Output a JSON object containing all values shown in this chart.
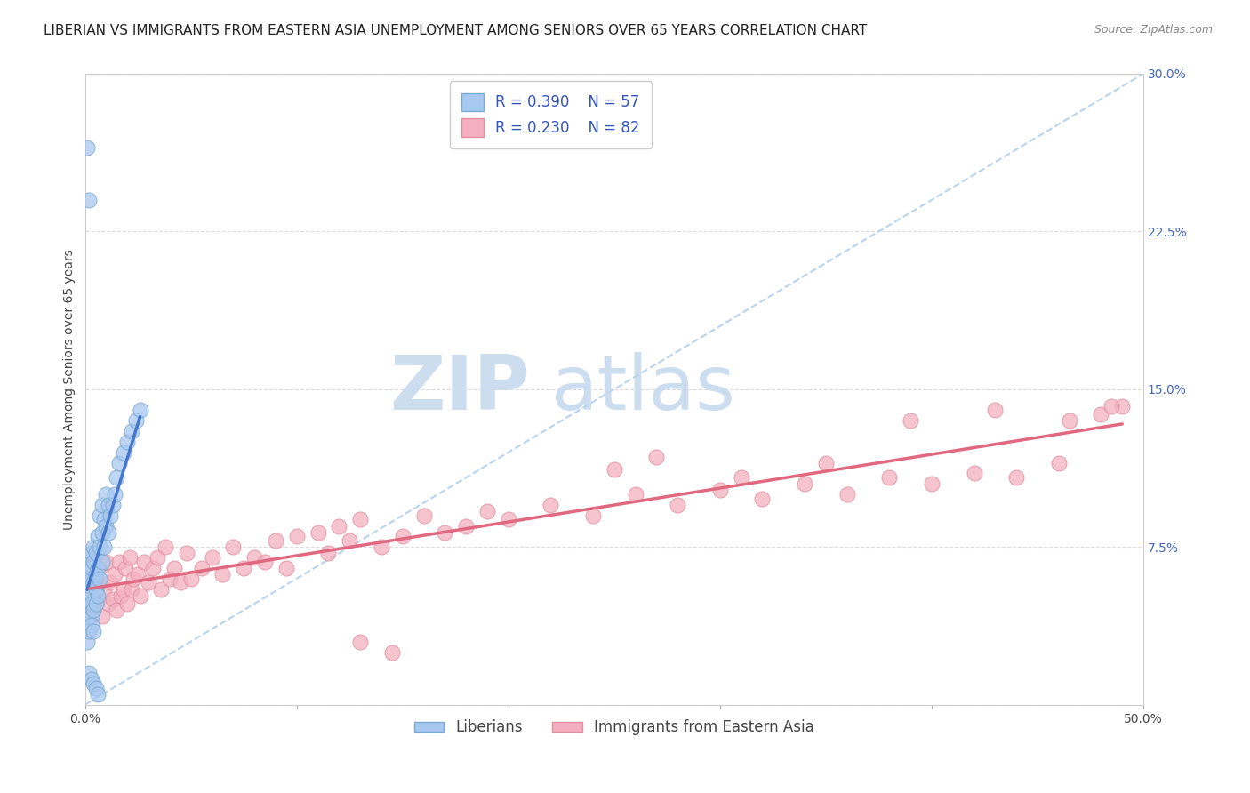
{
  "title": "LIBERIAN VS IMMIGRANTS FROM EASTERN ASIA UNEMPLOYMENT AMONG SENIORS OVER 65 YEARS CORRELATION CHART",
  "source": "Source: ZipAtlas.com",
  "ylabel": "Unemployment Among Seniors over 65 years",
  "xlim": [
    0.0,
    0.5
  ],
  "ylim": [
    0.0,
    0.3
  ],
  "xticks": [
    0.0,
    0.1,
    0.2,
    0.3,
    0.4,
    0.5
  ],
  "xticklabels": [
    "0.0%",
    "",
    "",
    "",
    "",
    "50.0%"
  ],
  "yticks": [
    0.0,
    0.075,
    0.15,
    0.225,
    0.3
  ],
  "right_yticklabels": [
    "",
    "7.5%",
    "15.0%",
    "22.5%",
    "30.0%"
  ],
  "liberian_color": "#a8c8f0",
  "liberian_edge_color": "#7aaad0",
  "eastern_asia_color": "#f4b0c0",
  "eastern_asia_edge_color": "#e090a0",
  "liberian_trend_color": "#4477cc",
  "eastern_asia_trend_color": "#e06880",
  "diagonal_color": "#b8d4ee",
  "legend_text_color": "#3355bb",
  "right_ytick_color": "#4466bb",
  "liberian_R": "0.390",
  "liberian_N": "57",
  "eastern_asia_R": "0.230",
  "eastern_asia_N": "82",
  "watermark_zip": "ZIP",
  "watermark_atlas": "atlas",
  "watermark_color": "#ccddf0",
  "background_color": "#ffffff",
  "grid_color": "#dddddd",
  "title_fontsize": 11,
  "axis_label_fontsize": 10,
  "tick_fontsize": 10,
  "legend_fontsize": 12,
  "liberian_x": [
    0.001,
    0.001,
    0.001,
    0.001,
    0.002,
    0.002,
    0.002,
    0.002,
    0.002,
    0.002,
    0.003,
    0.003,
    0.003,
    0.003,
    0.003,
    0.003,
    0.004,
    0.004,
    0.004,
    0.004,
    0.004,
    0.005,
    0.005,
    0.005,
    0.005,
    0.006,
    0.006,
    0.006,
    0.007,
    0.007,
    0.007,
    0.008,
    0.008,
    0.008,
    0.009,
    0.009,
    0.01,
    0.01,
    0.011,
    0.011,
    0.012,
    0.013,
    0.014,
    0.015,
    0.016,
    0.018,
    0.02,
    0.022,
    0.024,
    0.026,
    0.001,
    0.002,
    0.002,
    0.003,
    0.004,
    0.005,
    0.006
  ],
  "liberian_y": [
    0.055,
    0.065,
    0.04,
    0.03,
    0.058,
    0.045,
    0.06,
    0.035,
    0.05,
    0.07,
    0.052,
    0.065,
    0.042,
    0.072,
    0.048,
    0.038,
    0.058,
    0.068,
    0.045,
    0.075,
    0.035,
    0.062,
    0.072,
    0.048,
    0.055,
    0.065,
    0.08,
    0.052,
    0.075,
    0.06,
    0.09,
    0.068,
    0.082,
    0.095,
    0.075,
    0.088,
    0.085,
    0.1,
    0.082,
    0.095,
    0.09,
    0.095,
    0.1,
    0.108,
    0.115,
    0.12,
    0.125,
    0.13,
    0.135,
    0.14,
    0.265,
    0.24,
    0.015,
    0.012,
    0.01,
    0.008,
    0.005
  ],
  "eastern_asia_x": [
    0.002,
    0.003,
    0.004,
    0.005,
    0.006,
    0.007,
    0.008,
    0.009,
    0.01,
    0.011,
    0.012,
    0.013,
    0.014,
    0.015,
    0.016,
    0.017,
    0.018,
    0.019,
    0.02,
    0.021,
    0.022,
    0.023,
    0.025,
    0.026,
    0.028,
    0.03,
    0.032,
    0.034,
    0.036,
    0.038,
    0.04,
    0.042,
    0.045,
    0.048,
    0.05,
    0.055,
    0.06,
    0.065,
    0.07,
    0.075,
    0.08,
    0.085,
    0.09,
    0.095,
    0.1,
    0.11,
    0.115,
    0.12,
    0.125,
    0.13,
    0.14,
    0.15,
    0.16,
    0.17,
    0.18,
    0.19,
    0.2,
    0.22,
    0.24,
    0.26,
    0.28,
    0.3,
    0.32,
    0.34,
    0.36,
    0.38,
    0.4,
    0.42,
    0.44,
    0.46,
    0.48,
    0.49,
    0.25,
    0.27,
    0.31,
    0.35,
    0.39,
    0.43,
    0.465,
    0.485,
    0.13,
    0.145
  ],
  "eastern_asia_y": [
    0.048,
    0.055,
    0.045,
    0.06,
    0.05,
    0.065,
    0.042,
    0.055,
    0.068,
    0.048,
    0.058,
    0.05,
    0.062,
    0.045,
    0.068,
    0.052,
    0.055,
    0.065,
    0.048,
    0.07,
    0.055,
    0.06,
    0.062,
    0.052,
    0.068,
    0.058,
    0.065,
    0.07,
    0.055,
    0.075,
    0.06,
    0.065,
    0.058,
    0.072,
    0.06,
    0.065,
    0.07,
    0.062,
    0.075,
    0.065,
    0.07,
    0.068,
    0.078,
    0.065,
    0.08,
    0.082,
    0.072,
    0.085,
    0.078,
    0.088,
    0.075,
    0.08,
    0.09,
    0.082,
    0.085,
    0.092,
    0.088,
    0.095,
    0.09,
    0.1,
    0.095,
    0.102,
    0.098,
    0.105,
    0.1,
    0.108,
    0.105,
    0.11,
    0.108,
    0.115,
    0.138,
    0.142,
    0.112,
    0.118,
    0.108,
    0.115,
    0.135,
    0.14,
    0.135,
    0.142,
    0.03,
    0.025
  ]
}
